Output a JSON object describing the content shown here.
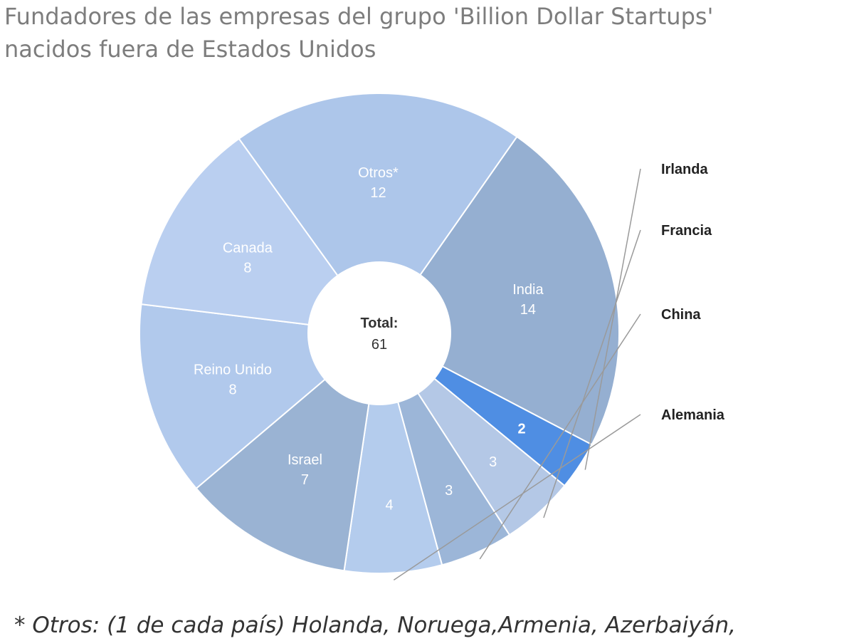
{
  "title": {
    "line1": "Fundadores de las empresas del grupo 'Billion Dollar Startups'",
    "line2": "nacidos fuera de Estados Unidos"
  },
  "chart_data": {
    "type": "pie",
    "variant": "donut",
    "center_label": "Total:",
    "center_value": "61",
    "slices": [
      {
        "name": "India",
        "value": 14,
        "color": "#95afd1",
        "label_inside": true
      },
      {
        "name": "Irlanda",
        "value": 2,
        "color": "#4f8ee3",
        "label_inside": false
      },
      {
        "name": "Francia",
        "value": 3,
        "color": "#b4c8e6",
        "label_inside": false
      },
      {
        "name": "China",
        "value": 3,
        "color": "#9cb6d8",
        "label_inside": false
      },
      {
        "name": "Alemania",
        "value": 4,
        "color": "#b4cced",
        "label_inside": false
      },
      {
        "name": "Israel",
        "value": 7,
        "color": "#9ab3d3",
        "label_inside": true
      },
      {
        "name": "Reino Unido",
        "value": 8,
        "color": "#b1c9ec",
        "label_inside": true
      },
      {
        "name": "Canada",
        "value": 8,
        "color": "#bacff0",
        "label_inside": true
      },
      {
        "name": "Otros*",
        "value": 12,
        "color": "#adc6ea",
        "label_inside": true
      }
    ]
  },
  "footnote": "* Otros: (1 de cada país) Holanda, Noruega,Armenia, Azerbaiyán,"
}
